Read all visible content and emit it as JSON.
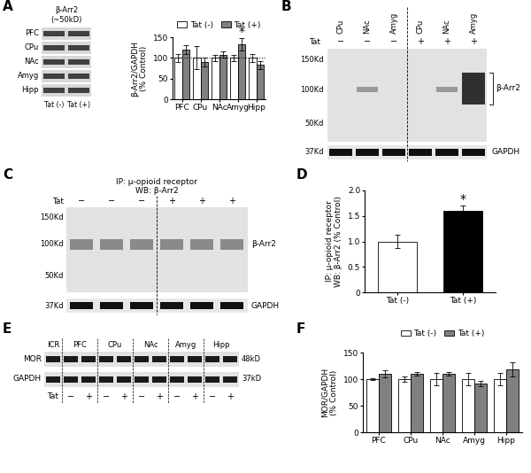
{
  "panels": [
    "A",
    "B",
    "C",
    "D",
    "E",
    "F"
  ],
  "chart_data": [
    {
      "type": "bar",
      "panel": "A",
      "categories": [
        "PFC",
        "CPu",
        "NAc",
        "Amyg",
        "Hipp"
      ],
      "series": [
        {
          "name": "Tat (-)",
          "color": "#ffffff",
          "values": [
            100,
            100,
            100,
            100,
            100
          ],
          "errors": [
            10,
            28,
            8,
            8,
            10
          ]
        },
        {
          "name": "Tat (+)",
          "color": "#808080",
          "values": [
            120,
            90,
            108,
            132,
            83
          ],
          "errors": [
            10,
            10,
            7,
            15,
            10
          ]
        }
      ],
      "ylabel": "β-Arr2/GAPDH\n(% Control)",
      "ylim": [
        0,
        150
      ],
      "yticks": [
        0,
        50,
        100,
        150
      ],
      "reference_line": 100,
      "legend": "upper center",
      "annotations": [
        {
          "text": "*",
          "category": "Amyg",
          "series": "Tat (+)"
        }
      ]
    },
    {
      "type": "bar",
      "panel": "D",
      "categories": [
        "Tat (-)",
        "Tat (+)"
      ],
      "series": [
        {
          "colors": [
            "#ffffff",
            "#000000"
          ],
          "values": [
            1.0,
            1.6
          ],
          "errors": [
            0.13,
            0.1
          ]
        }
      ],
      "ylabel": "IP: μ-opioid receptor\nWB: β-Arr2 (% Control)",
      "ylim": [
        0,
        2
      ],
      "yticks": [
        0,
        0.5,
        {
          "value": 1,
          "label": "1.0"
        },
        1.5,
        {
          "value": 2,
          "label": "2.0"
        }
      ],
      "annotations": [
        {
          "text": "*",
          "category": "Tat (+)"
        }
      ]
    },
    {
      "type": "bar",
      "panel": "F",
      "categories": [
        "PFC",
        "CPu",
        "NAc",
        "Amyg",
        "Hipp"
      ],
      "series": [
        {
          "name": "Tat (-)",
          "color": "#ffffff",
          "values": [
            100,
            100,
            100,
            100,
            100
          ],
          "errors": [
            2,
            5,
            12,
            12,
            12
          ]
        },
        {
          "name": "Tat (+)",
          "color": "#808080",
          "values": [
            110,
            110,
            110,
            92,
            118
          ],
          "errors": [
            6,
            4,
            4,
            5,
            13
          ]
        }
      ],
      "ylabel": "MOR/GAPDH\n(% Control)",
      "ylim": [
        0,
        150
      ],
      "yticks": [
        0,
        50,
        100,
        150
      ],
      "legend": "upper center"
    }
  ],
  "blots": {
    "A": {
      "header": "β-Arr2\n(~50kD)",
      "rows": [
        "PFC",
        "CPu",
        "NAc",
        "Amyg",
        "Hipp"
      ],
      "lanes": [
        "Tat (-)",
        "Tat (+)"
      ]
    },
    "B": {
      "lanes": [
        "CPu",
        "NAc",
        "Amyg",
        "CPu",
        "NAc",
        "Amyg"
      ],
      "treatment": "Tat",
      "signs": [
        "−",
        "−",
        "−",
        "+",
        "+",
        "+"
      ],
      "mw": [
        "150Kd",
        "100Kd",
        "50Kd",
        "37Kd"
      ],
      "bands": [
        "β-Arr2",
        "GAPDH"
      ]
    },
    "C": {
      "title": [
        "IP: μ-opioid receptor",
        "WB: β-Arr2"
      ],
      "treatment": "Tat",
      "signs": [
        "−",
        "−",
        "−",
        "+",
        "+",
        "+"
      ],
      "mw": [
        "150Kd",
        "100Kd",
        "50Kd",
        "37Kd"
      ],
      "bands": [
        "β-Arr2",
        "GAPDH"
      ]
    },
    "E": {
      "groups": [
        "ICR",
        "PFC",
        "CPu",
        "NAc",
        "Amyg",
        "Hipp"
      ],
      "bands": [
        "MOR",
        "GAPDH"
      ],
      "mw": [
        "48kD",
        "37kD"
      ],
      "treatment": "Tat",
      "signs": [
        "−",
        "+",
        "−",
        "+",
        "−",
        "+",
        "−",
        "+",
        "−",
        "+"
      ]
    }
  }
}
